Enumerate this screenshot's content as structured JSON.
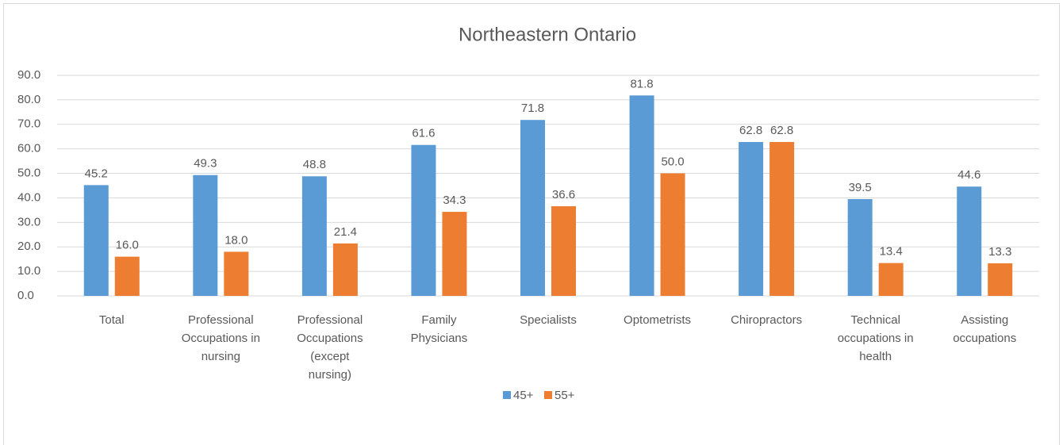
{
  "chart_data": {
    "type": "bar",
    "title": "Northeastern Ontario",
    "categories": [
      "Total",
      "Professional Occupations in nursing",
      "Professional Occupations (except nursing)",
      "Family Physicians",
      "Specialists",
      "Optometrists",
      "Chiropractors",
      "Technical occupations in health",
      "Assisting occupations"
    ],
    "series": [
      {
        "name": "45+",
        "color": "#5b9bd5",
        "values": [
          45.2,
          49.3,
          48.8,
          61.6,
          71.8,
          81.8,
          62.8,
          39.5,
          44.6
        ],
        "value_labels": [
          "45.2",
          "49.3",
          "48.8",
          "61.6",
          "71.8",
          "81.8",
          "62.8",
          "39.5",
          "44.6"
        ]
      },
      {
        "name": "55+",
        "color": "#ed7d31",
        "values": [
          16.0,
          18.0,
          21.4,
          34.3,
          36.6,
          50.0,
          62.8,
          13.4,
          13.3
        ],
        "value_labels": [
          "16.0",
          "18.0",
          "21.4",
          "34.3",
          "36.6",
          "50.0",
          "62.8",
          "13.4",
          "13.3"
        ]
      }
    ],
    "ylim": [
      0,
      90
    ],
    "yticks": [
      {
        "value": 0,
        "label": "0.0"
      },
      {
        "value": 10,
        "label": "10.0"
      },
      {
        "value": 20,
        "label": "20.0"
      },
      {
        "value": 30,
        "label": "30.0"
      },
      {
        "value": 40,
        "label": "40.0"
      },
      {
        "value": 50,
        "label": "50.0"
      },
      {
        "value": 60,
        "label": "60.0"
      },
      {
        "value": 70,
        "label": "70.0"
      },
      {
        "value": 80,
        "label": "80.0"
      },
      {
        "value": 90,
        "label": "90.0"
      }
    ],
    "grid": true,
    "legend": "bottom"
  }
}
